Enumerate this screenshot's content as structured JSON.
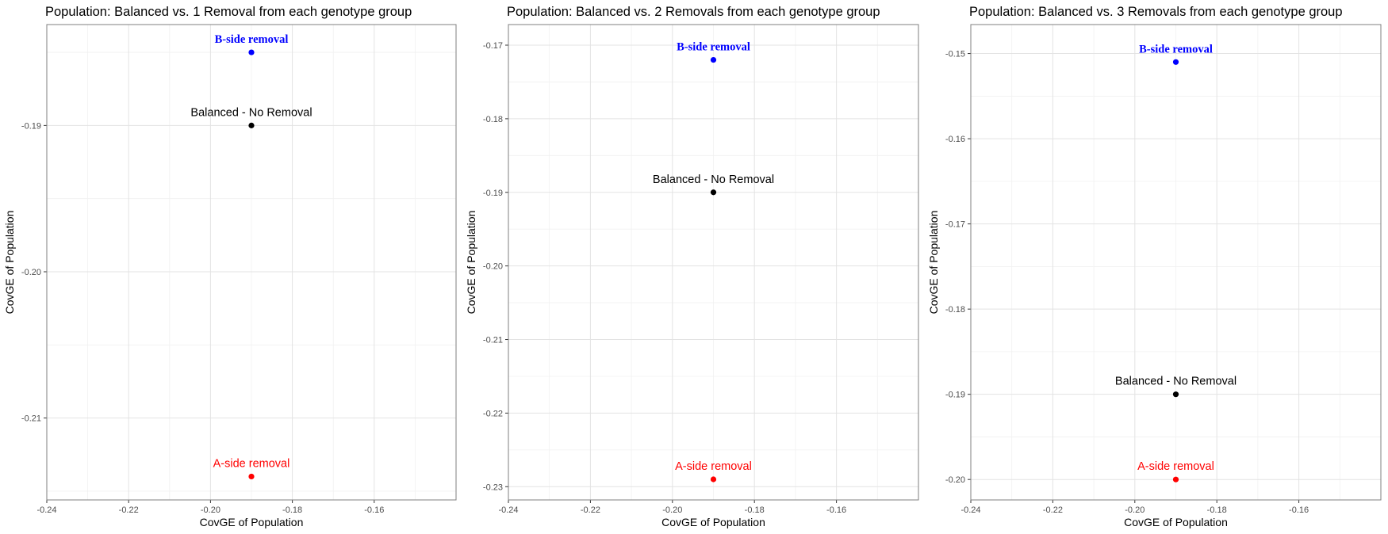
{
  "chart_data": [
    {
      "type": "scatter",
      "title": "Population: Balanced vs. 1 Removal from each genotype group",
      "xlabel": "CovGE of Population",
      "ylabel": "CovGE of Population",
      "xlim": [
        -0.24,
        -0.14
      ],
      "ylim": [
        -0.2156,
        -0.1831
      ],
      "xticks": [
        -0.24,
        -0.22,
        -0.2,
        -0.18,
        -0.16
      ],
      "xtick_labels": [
        "-0.24",
        "-0.22",
        "-0.20",
        "-0.18",
        "-0.16"
      ],
      "yticks": [
        -0.19,
        -0.2,
        -0.21
      ],
      "ytick_labels": [
        "-0.19",
        "-0.20",
        "-0.21"
      ],
      "grid": true,
      "points": [
        {
          "label": "B-side removal",
          "x": -0.19,
          "y": -0.185,
          "color": "#0000ff"
        },
        {
          "label": "Balanced - No Removal",
          "x": -0.19,
          "y": -0.19,
          "color": "#000000"
        },
        {
          "label": "A-side removal",
          "x": -0.19,
          "y": -0.214,
          "color": "#ff0000"
        }
      ]
    },
    {
      "type": "scatter",
      "title": "Population: Balanced vs. 2 Removals from each genotype group",
      "xlabel": "CovGE of Population",
      "ylabel": "CovGE of Population",
      "xlim": [
        -0.24,
        -0.14
      ],
      "ylim": [
        -0.2318,
        -0.1672
      ],
      "xticks": [
        -0.24,
        -0.22,
        -0.2,
        -0.18,
        -0.16
      ],
      "xtick_labels": [
        "-0.24",
        "-0.22",
        "-0.20",
        "-0.18",
        "-0.16"
      ],
      "yticks": [
        -0.17,
        -0.18,
        -0.19,
        -0.2,
        -0.21,
        -0.22,
        -0.23
      ],
      "ytick_labels": [
        "-0.17",
        "-0.18",
        "-0.19",
        "-0.20",
        "-0.21",
        "-0.22",
        "-0.23"
      ],
      "grid": true,
      "points": [
        {
          "label": "B-side removal",
          "x": -0.19,
          "y": -0.172,
          "color": "#0000ff"
        },
        {
          "label": "Balanced - No Removal",
          "x": -0.19,
          "y": -0.19,
          "color": "#000000"
        },
        {
          "label": "A-side removal",
          "x": -0.19,
          "y": -0.229,
          "color": "#ff0000"
        }
      ]
    },
    {
      "type": "scatter",
      "title": "Population: Balanced vs. 3 Removals from each genotype group",
      "xlabel": "CovGE of Population",
      "ylabel": "CovGE of Population",
      "xlim": [
        -0.24,
        -0.14
      ],
      "ylim": [
        -0.2024,
        -0.1466
      ],
      "xticks": [
        -0.24,
        -0.22,
        -0.2,
        -0.18,
        -0.16
      ],
      "xtick_labels": [
        "-0.24",
        "-0.22",
        "-0.20",
        "-0.18",
        "-0.16"
      ],
      "yticks": [
        -0.15,
        -0.16,
        -0.17,
        -0.18,
        -0.19,
        -0.2
      ],
      "ytick_labels": [
        "-0.15",
        "-0.16",
        "-0.17",
        "-0.18",
        "-0.19",
        "-0.20"
      ],
      "grid": true,
      "points": [
        {
          "label": "B-side removal",
          "x": -0.19,
          "y": -0.151,
          "color": "#0000ff"
        },
        {
          "label": "Balanced - No Removal",
          "x": -0.19,
          "y": -0.19,
          "color": "#000000"
        },
        {
          "label": "A-side removal",
          "x": -0.19,
          "y": -0.2,
          "color": "#ff0000"
        }
      ]
    }
  ]
}
